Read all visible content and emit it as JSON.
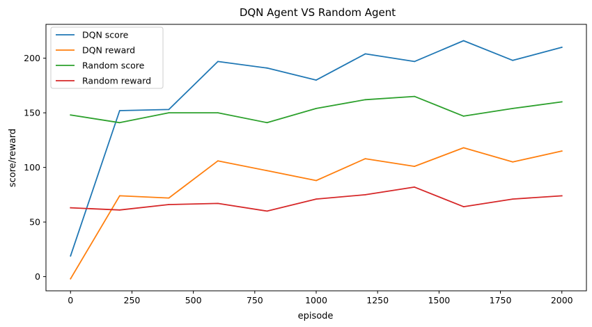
{
  "chart_data": {
    "type": "line",
    "title": "DQN Agent VS Random Agent",
    "xlabel": "episode",
    "ylabel": "score/reward",
    "x": [
      0,
      200,
      400,
      600,
      800,
      1000,
      1200,
      1400,
      1600,
      1800,
      2000
    ],
    "xlim": [
      -100,
      2100
    ],
    "ylim": [
      -13,
      231
    ],
    "xticks": [
      0,
      250,
      500,
      750,
      1000,
      1250,
      1500,
      1750,
      2000
    ],
    "yticks": [
      0,
      50,
      100,
      150,
      200
    ],
    "grid": false,
    "legend_position": "top-left",
    "series": [
      {
        "name": "DQN score",
        "color": "#1f77b4",
        "values": [
          19,
          152,
          153,
          197,
          191,
          180,
          204,
          197,
          216,
          198,
          210
        ]
      },
      {
        "name": "DQN reward",
        "color": "#ff7f0e",
        "values": [
          -2,
          74,
          72,
          106,
          97,
          88,
          108,
          101,
          118,
          105,
          115
        ]
      },
      {
        "name": "Random score",
        "color": "#2ca02c",
        "values": [
          148,
          141,
          150,
          150,
          141,
          154,
          162,
          165,
          147,
          154,
          160
        ]
      },
      {
        "name": "Random reward",
        "color": "#d62728",
        "values": [
          63,
          61,
          66,
          67,
          60,
          71,
          75,
          82,
          64,
          71,
          74
        ]
      }
    ]
  }
}
